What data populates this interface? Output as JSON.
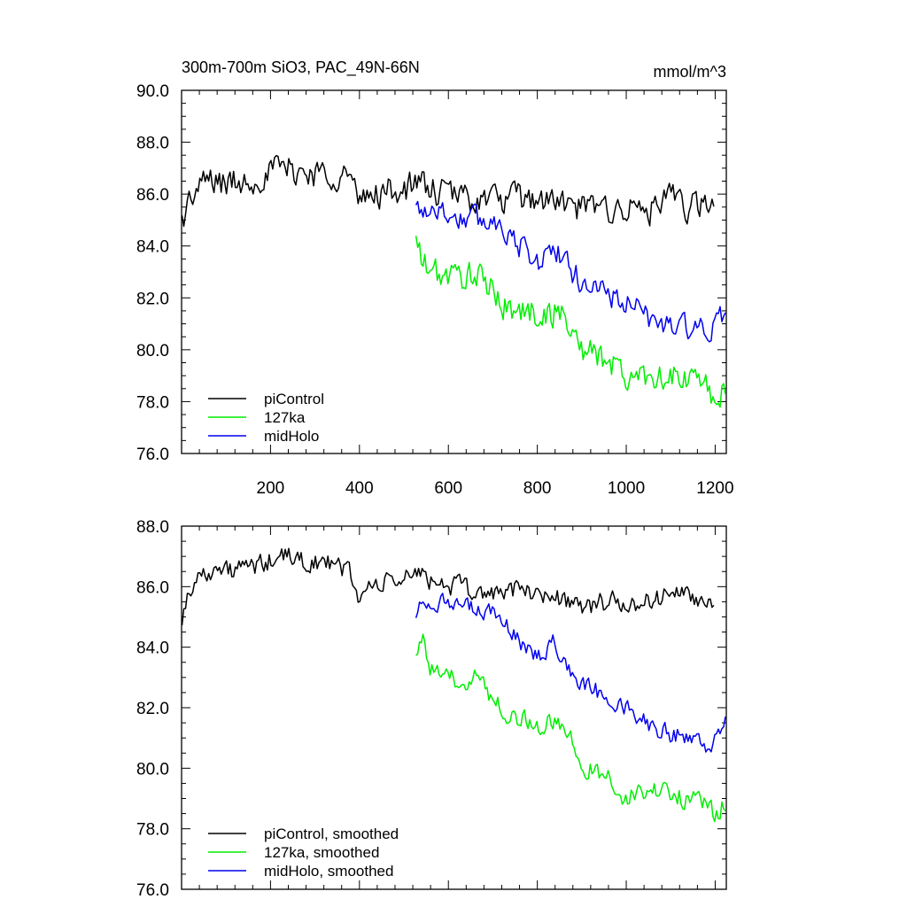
{
  "header": {
    "title": "300m-700m SiO3, PAC_49N-66N",
    "units": "mmol/m^3"
  },
  "colors": {
    "piControl": "#000000",
    "127ka": "#00ee00",
    "midHolo": "#0000ee"
  },
  "chart_data": [
    {
      "type": "line",
      "panel": "top",
      "xlim": [
        0,
        1225
      ],
      "ylim": [
        76,
        90
      ],
      "x_tick_labels": [
        "200",
        "400",
        "600",
        "800",
        "1000",
        "1200"
      ],
      "x_ticks": [
        200,
        400,
        600,
        800,
        1000,
        1200
      ],
      "y_tick_labels": [
        "76.0",
        "78.0",
        "80.0",
        "82.0",
        "84.0",
        "86.0",
        "88.0",
        "90.0"
      ],
      "y_ticks": [
        76,
        78,
        80,
        82,
        84,
        86,
        88,
        90
      ],
      "legend": [
        "piControl",
        "127ka",
        "midHolo"
      ],
      "legend_position": "bottom-left",
      "series": [
        {
          "name": "piControl",
          "x_start": 1,
          "x_end": 1200,
          "anchors": [
            [
              1,
              85.0
            ],
            [
              20,
              85.8
            ],
            [
              60,
              86.6
            ],
            [
              100,
              86.4
            ],
            [
              140,
              86.5
            ],
            [
              180,
              86.7
            ],
            [
              220,
              87.0
            ],
            [
              260,
              86.9
            ],
            [
              300,
              86.8
            ],
            [
              340,
              86.8
            ],
            [
              380,
              86.7
            ],
            [
              400,
              85.5
            ],
            [
              420,
              86.0
            ],
            [
              460,
              86.1
            ],
            [
              500,
              86.2
            ],
            [
              540,
              86.4
            ],
            [
              580,
              86.0
            ],
            [
              620,
              86.0
            ],
            [
              660,
              85.8
            ],
            [
              700,
              85.8
            ],
            [
              740,
              85.8
            ],
            [
              800,
              85.8
            ],
            [
              860,
              85.6
            ],
            [
              900,
              85.4
            ],
            [
              960,
              85.5
            ],
            [
              1000,
              85.4
            ],
            [
              1060,
              85.4
            ],
            [
              1100,
              85.8
            ],
            [
              1140,
              85.5
            ],
            [
              1200,
              85.5
            ]
          ],
          "noise": 0.75
        },
        {
          "name": "127ka",
          "x_start": 527,
          "x_end": 1225,
          "anchors": [
            [
              527,
              84.2
            ],
            [
              545,
              83.2
            ],
            [
              600,
              82.8
            ],
            [
              660,
              82.9
            ],
            [
              700,
              82.2
            ],
            [
              740,
              81.5
            ],
            [
              800,
              81.4
            ],
            [
              860,
              81.4
            ],
            [
              900,
              80.0
            ],
            [
              960,
              79.6
            ],
            [
              1000,
              78.9
            ],
            [
              1060,
              79.1
            ],
            [
              1100,
              78.9
            ],
            [
              1160,
              78.8
            ],
            [
              1200,
              78.2
            ],
            [
              1225,
              78.6
            ]
          ],
          "noise": 0.75
        },
        {
          "name": "midHolo",
          "x_start": 527,
          "x_end": 1225,
          "anchors": [
            [
              527,
              85.4
            ],
            [
              560,
              85.5
            ],
            [
              620,
              85.1
            ],
            [
              680,
              85.0
            ],
            [
              720,
              84.9
            ],
            [
              760,
              84.0
            ],
            [
              800,
              83.4
            ],
            [
              840,
              83.9
            ],
            [
              880,
              82.9
            ],
            [
              940,
              82.3
            ],
            [
              1000,
              81.8
            ],
            [
              1060,
              81.1
            ],
            [
              1100,
              81.0
            ],
            [
              1160,
              80.8
            ],
            [
              1190,
              80.5
            ],
            [
              1225,
              81.5
            ]
          ],
          "noise": 0.65
        }
      ]
    },
    {
      "type": "line",
      "panel": "bottom",
      "xlim": [
        0,
        1225
      ],
      "ylim": [
        76,
        88
      ],
      "x_ticks": [
        200,
        400,
        600,
        800,
        1000,
        1200
      ],
      "y_tick_labels": [
        "76.0",
        "78.0",
        "80.0",
        "82.0",
        "84.0",
        "86.0",
        "88.0"
      ],
      "y_ticks": [
        76,
        78,
        80,
        82,
        84,
        86,
        88
      ],
      "legend": [
        "piControl, smoothed",
        "127ka, smoothed",
        "midHolo, smoothed"
      ],
      "legend_position": "bottom-left",
      "series": [
        {
          "name": "piControl, smoothed",
          "x_start": 1,
          "x_end": 1200,
          "anchors": [
            [
              1,
              85.0
            ],
            [
              20,
              86.0
            ],
            [
              60,
              86.6
            ],
            [
              100,
              86.5
            ],
            [
              140,
              86.6
            ],
            [
              180,
              86.7
            ],
            [
              220,
              87.0
            ],
            [
              260,
              86.9
            ],
            [
              300,
              86.8
            ],
            [
              340,
              86.7
            ],
            [
              380,
              86.5
            ],
            [
              400,
              85.5
            ],
            [
              420,
              86.0
            ],
            [
              460,
              86.1
            ],
            [
              500,
              86.3
            ],
            [
              540,
              86.4
            ],
            [
              580,
              86.1
            ],
            [
              620,
              86.0
            ],
            [
              660,
              85.8
            ],
            [
              700,
              85.8
            ],
            [
              740,
              85.9
            ],
            [
              800,
              85.8
            ],
            [
              860,
              85.6
            ],
            [
              900,
              85.3
            ],
            [
              960,
              85.5
            ],
            [
              1000,
              85.4
            ],
            [
              1060,
              85.5
            ],
            [
              1100,
              85.9
            ],
            [
              1140,
              85.6
            ],
            [
              1200,
              85.5
            ]
          ],
          "noise": 0.45
        },
        {
          "name": "127ka, smoothed",
          "x_start": 527,
          "x_end": 1225,
          "anchors": [
            [
              527,
              84.0
            ],
            [
              540,
              84.4
            ],
            [
              560,
              83.2
            ],
            [
              600,
              82.9
            ],
            [
              660,
              83.0
            ],
            [
              700,
              82.4
            ],
            [
              740,
              81.7
            ],
            [
              800,
              81.5
            ],
            [
              860,
              81.4
            ],
            [
              900,
              80.1
            ],
            [
              960,
              79.7
            ],
            [
              1000,
              79.0
            ],
            [
              1060,
              79.3
            ],
            [
              1100,
              79.1
            ],
            [
              1160,
              79.0
            ],
            [
              1200,
              78.4
            ],
            [
              1225,
              78.9
            ]
          ],
          "noise": 0.45
        },
        {
          "name": "midHolo, smoothed",
          "x_start": 527,
          "x_end": 1225,
          "anchors": [
            [
              527,
              85.2
            ],
            [
              560,
              85.6
            ],
            [
              620,
              85.3
            ],
            [
              680,
              85.2
            ],
            [
              720,
              85.0
            ],
            [
              760,
              84.1
            ],
            [
              800,
              83.7
            ],
            [
              840,
              84.2
            ],
            [
              880,
              83.0
            ],
            [
              940,
              82.5
            ],
            [
              1000,
              82.0
            ],
            [
              1060,
              81.4
            ],
            [
              1100,
              81.1
            ],
            [
              1160,
              81.0
            ],
            [
              1190,
              80.6
            ],
            [
              1225,
              81.9
            ]
          ],
          "noise": 0.4
        }
      ]
    }
  ]
}
